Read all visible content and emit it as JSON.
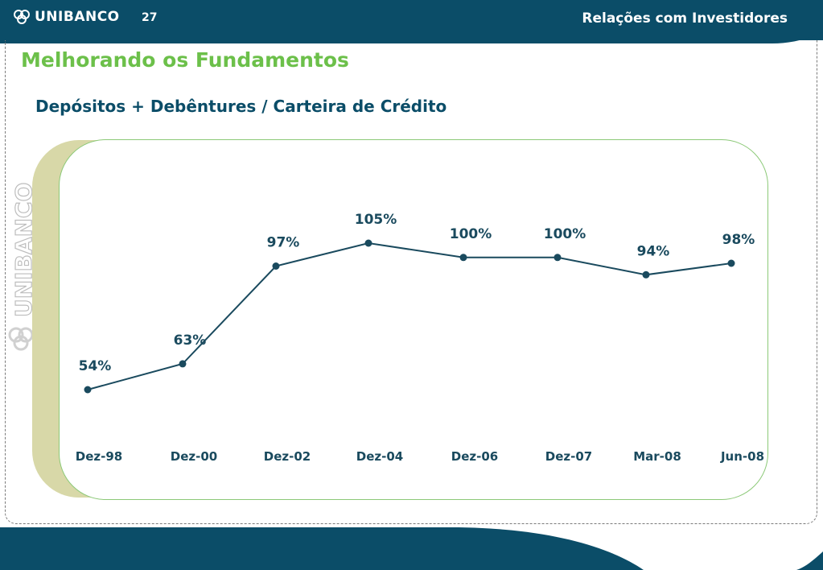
{
  "header": {
    "brand": "UNIBANCO",
    "page_number": "27",
    "section": "Relações com Investidores"
  },
  "page_title": "Melhorando os Fundamentos",
  "watermark_text": "UNIBANCO",
  "colors": {
    "header_bg": "#0b4d68",
    "title_green": "#6cc04a",
    "series_line": "#1a4a5e",
    "panel_border": "#8cc978",
    "panel_shadow": "#d8d8a8"
  },
  "chart_data": {
    "type": "line",
    "title": "Depósitos + Debêntures / Carteira de Crédito",
    "categories": [
      "Dez-98",
      "Dez-00",
      "Dez-02",
      "Dez-04",
      "Dez-06",
      "Dez-07",
      "Mar-08",
      "Jun-08"
    ],
    "values": [
      54,
      63,
      97,
      105,
      100,
      100,
      94,
      98
    ],
    "data_labels": [
      "54%",
      "63%",
      "97%",
      "105%",
      "100%",
      "100%",
      "94%",
      "98%"
    ],
    "xlabel": "",
    "ylabel": "",
    "grid": false,
    "legend": "none"
  }
}
